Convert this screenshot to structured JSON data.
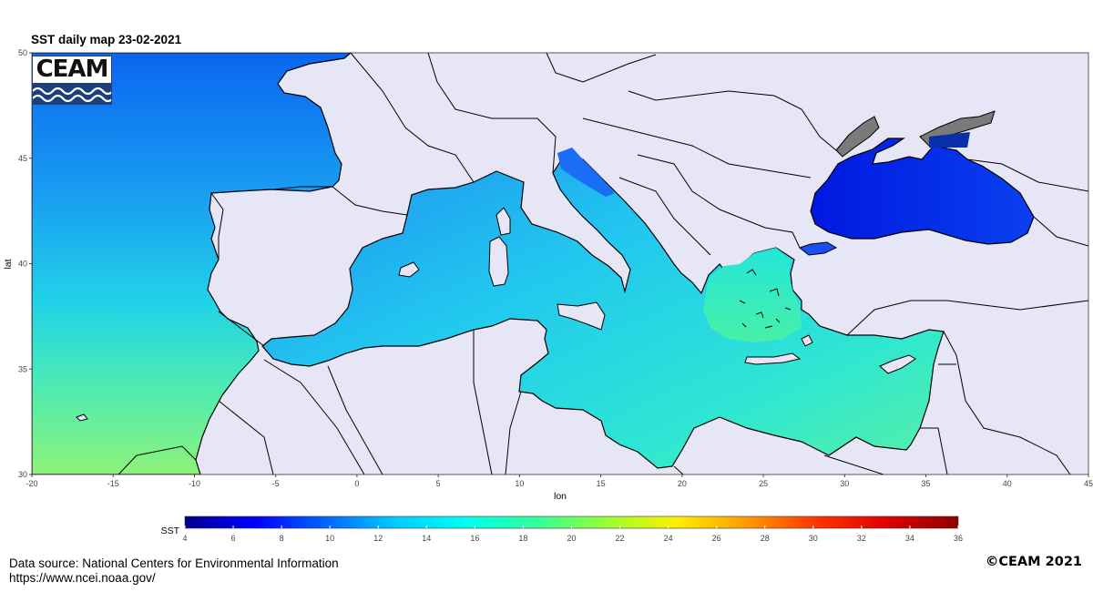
{
  "title": "SST daily map 23-02-2021",
  "logo_text": "CEAM",
  "axes": {
    "x_label": "lon",
    "y_label": "lat",
    "x_ticks": [
      "-20",
      "-15",
      "-10",
      "-5",
      "0",
      "5",
      "10",
      "15",
      "20",
      "25",
      "30",
      "35",
      "40",
      "45"
    ],
    "y_ticks": [
      "50",
      "45",
      "40",
      "35",
      "30"
    ],
    "lon_range": [
      -20,
      45
    ],
    "lat_range": [
      30,
      50
    ]
  },
  "colorbar": {
    "label": "SST",
    "ticks": [
      "4",
      "6",
      "8",
      "10",
      "12",
      "14",
      "16",
      "18",
      "20",
      "22",
      "24",
      "26",
      "28",
      "30",
      "32",
      "34",
      "36"
    ],
    "range": [
      4,
      36
    ],
    "colors": [
      "#00008b",
      "#0000ff",
      "#0066ff",
      "#00ccff",
      "#00ffee",
      "#33ff99",
      "#99ff33",
      "#ffee00",
      "#ff9900",
      "#ff3300",
      "#dd0000",
      "#8b0000"
    ]
  },
  "colors": {
    "land": "#e6e6f7",
    "missing": "#7a7a7a",
    "coastline": "#000000"
  },
  "footer": {
    "source": "Data source: National Centers for Environmental Information",
    "url": "https://www.ncei.noaa.gov/",
    "copyright": "©CEAM 2021"
  }
}
